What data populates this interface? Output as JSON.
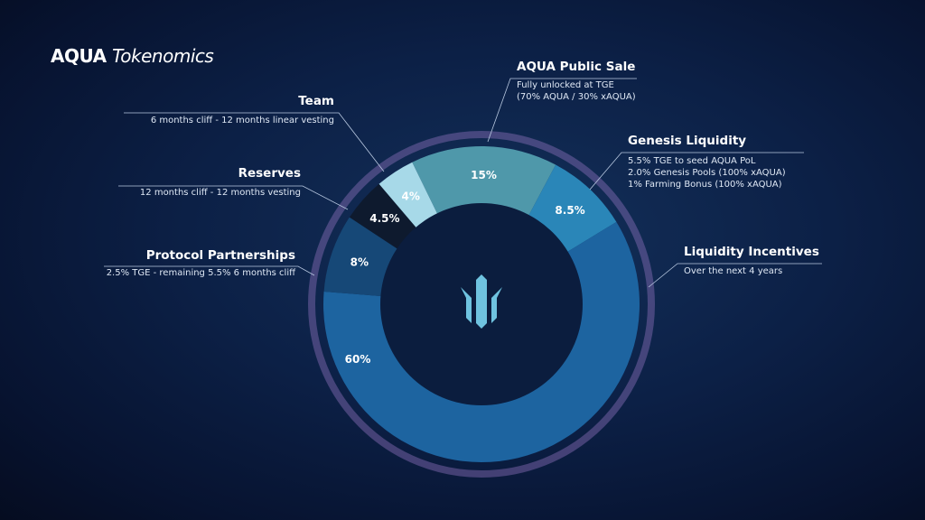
{
  "title": {
    "brand": "AQUA",
    "subtitle": "Tokenomics"
  },
  "chart_data": {
    "type": "pie",
    "donut": true,
    "title": "AQUA Tokenomics",
    "slices": [
      {
        "name": "AQUA Public Sale",
        "value": 15,
        "label": "15%",
        "color": "#4f98aa",
        "desc": [
          "Fully unlocked at TGE",
          "(70% AQUA / 30% xAQUA)"
        ]
      },
      {
        "name": "Genesis Liquidity",
        "value": 8.5,
        "label": "8.5%",
        "color": "#2a86b8",
        "desc": [
          "5.5% TGE to seed AQUA PoL",
          "2.0% Genesis Pools (100% xAQUA)",
          "1% Farming Bonus (100% xAQUA)"
        ]
      },
      {
        "name": "Liquidity Incentives",
        "value": 60,
        "label": "60%",
        "color": "#1d64a0",
        "desc": [
          "Over the next 4 years"
        ]
      },
      {
        "name": "Protocol Partnerships",
        "value": 8,
        "label": "8%",
        "color": "#164877",
        "desc": [
          "2.5% TGE - remaining 5.5% 6 months cliff"
        ]
      },
      {
        "name": "Reserves",
        "value": 4.5,
        "label": "4.5%",
        "color": "#0e1a2e",
        "desc": [
          "12 months cliff - 12 months vesting"
        ]
      },
      {
        "name": "Team",
        "value": 4,
        "label": "4%",
        "color": "#a7d9e8",
        "desc": [
          "6 months cliff - 12 months linear vesting"
        ]
      }
    ]
  }
}
